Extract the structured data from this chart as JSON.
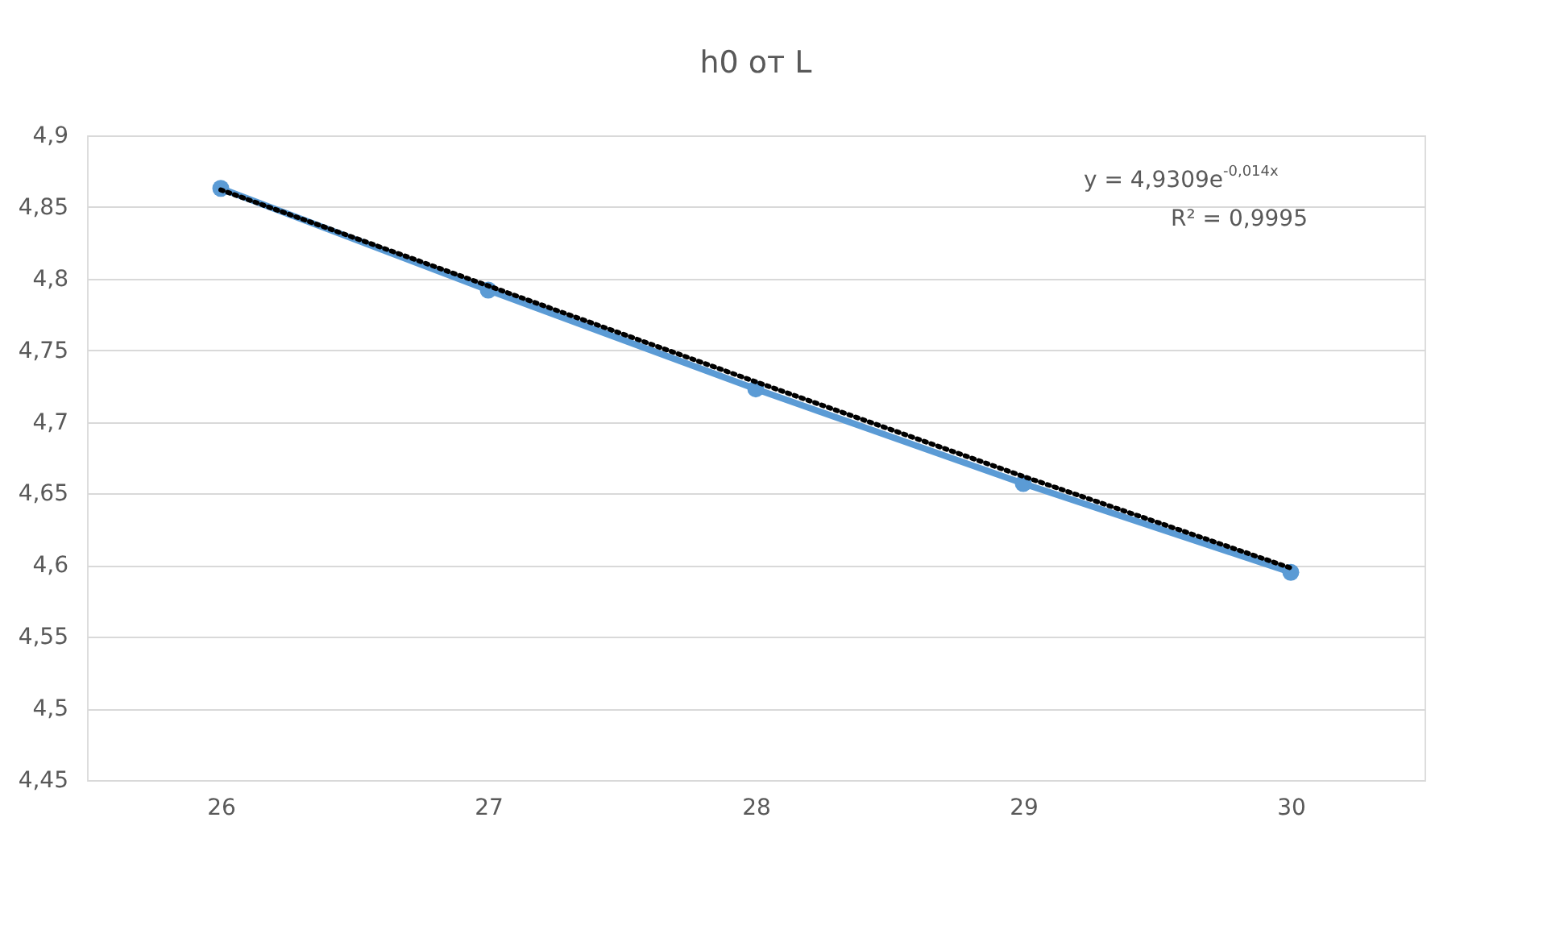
{
  "chart_data": {
    "type": "line",
    "title": "h0 от L",
    "categories": [
      "26",
      "27",
      "28",
      "29",
      "30"
    ],
    "series": [
      {
        "color": "#5b9bd5",
        "values": [
          4.863,
          4.792,
          4.723,
          4.657,
          4.595
        ],
        "marker": "circle",
        "line_style": "solid"
      },
      {
        "type": "line",
        "color": "#000000",
        "values": [
          4.862,
          4.795,
          4.728,
          4.662,
          4.598
        ],
        "marker": "none",
        "line_style": "dotted"
      }
    ],
    "ylim": [
      4.45,
      4.9
    ],
    "yticks": [
      {
        "value": 4.45,
        "label": "4,45"
      },
      {
        "value": 4.5,
        "label": "4,5"
      },
      {
        "value": 4.55,
        "label": "4,55"
      },
      {
        "value": 4.6,
        "label": "4,6"
      },
      {
        "value": 4.65,
        "label": "4,65"
      },
      {
        "value": 4.7,
        "label": "4,7"
      },
      {
        "value": 4.75,
        "label": "4,75"
      },
      {
        "value": 4.8,
        "label": "4,8"
      },
      {
        "value": 4.85,
        "label": "4,85"
      },
      {
        "value": 4.9,
        "label": "4,9"
      }
    ],
    "grid": "y",
    "annotations": [
      "y = 4,9309e$^{-0,014x}$",
      "R² = 0,9995"
    ]
  }
}
